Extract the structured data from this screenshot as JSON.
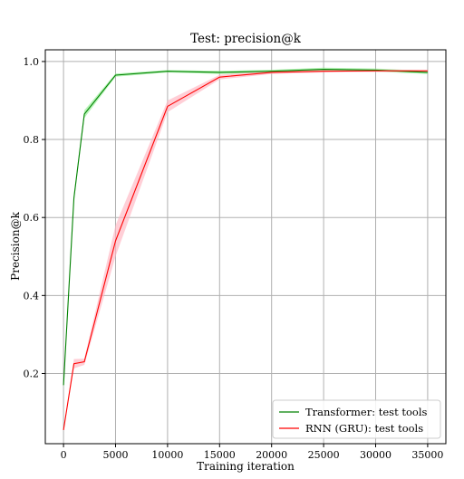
{
  "chart_data": {
    "type": "line",
    "title": "Test: precision@k",
    "xlabel": "Training iteration",
    "ylabel": "Precision@k",
    "xlim": [
      -1750,
      36750
    ],
    "ylim": [
      0.02,
      1.03
    ],
    "xticks": [
      0,
      5000,
      10000,
      15000,
      20000,
      25000,
      30000,
      35000
    ],
    "yticks": [
      0.2,
      0.4,
      0.6,
      0.8,
      1.0
    ],
    "xtick_labels": [
      "0",
      "5000",
      "10000",
      "15000",
      "20000",
      "25000",
      "30000",
      "35000"
    ],
    "ytick_labels": [
      "0.2",
      "0.4",
      "0.6",
      "0.8",
      "1.0"
    ],
    "grid": true,
    "legend_position": "lower-right",
    "series": [
      {
        "name": "Transformer: test tools",
        "color": "#008000",
        "band_color": "#90ee90",
        "x": [
          0,
          1000,
          2000,
          5000,
          10000,
          15000,
          20000,
          25000,
          30000,
          35000
        ],
        "y": [
          0.17,
          0.65,
          0.865,
          0.965,
          0.975,
          0.972,
          0.975,
          0.98,
          0.978,
          0.972
        ],
        "band": [
          0.01,
          0.01,
          0.01,
          0.004,
          0.003,
          0.004,
          0.004,
          0.004,
          0.004,
          0.004
        ]
      },
      {
        "name": "RNN (GRU): test tools",
        "color": "#ff0000",
        "band_color": "#ffb6c1",
        "x": [
          0,
          1000,
          2000,
          5000,
          10000,
          15000,
          20000,
          25000,
          30000,
          35000
        ],
        "y": [
          0.055,
          0.225,
          0.23,
          0.54,
          0.885,
          0.96,
          0.972,
          0.975,
          0.976,
          0.976
        ],
        "band": [
          0.003,
          0.012,
          0.008,
          0.04,
          0.015,
          0.006,
          0.004,
          0.003,
          0.003,
          0.003
        ]
      }
    ]
  }
}
